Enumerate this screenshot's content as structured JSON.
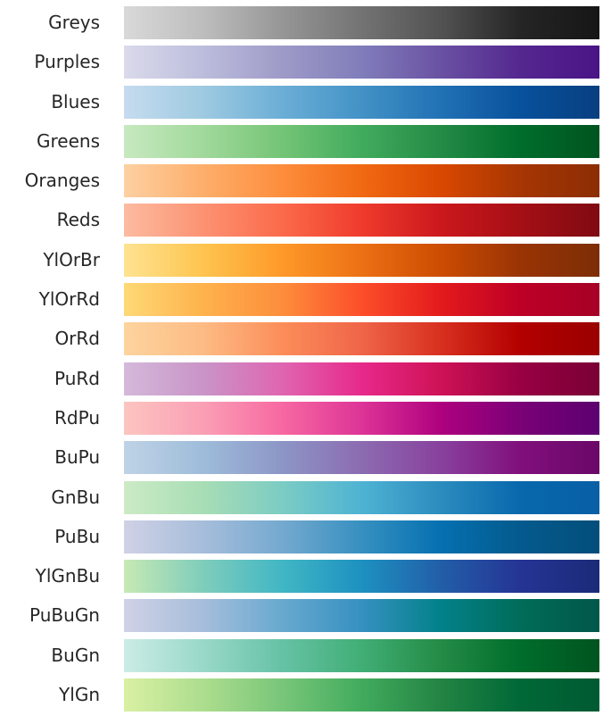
{
  "colormaps": [
    {
      "name": "Greys",
      "colors": [
        "#d9d9d9",
        "#bdbdbd",
        "#969696",
        "#737373",
        "#525252",
        "#252525",
        "#161616"
      ]
    },
    {
      "name": "Purples",
      "colors": [
        "#dadaeb",
        "#bcbddc",
        "#9e9ac8",
        "#807dba",
        "#6a51a3",
        "#54278f",
        "#4a1486"
      ]
    },
    {
      "name": "Blues",
      "colors": [
        "#c6dbef",
        "#9ecae1",
        "#6baed6",
        "#4292c6",
        "#2171b5",
        "#08519c",
        "#083f80"
      ]
    },
    {
      "name": "Greens",
      "colors": [
        "#c7e9c0",
        "#a1d99b",
        "#74c476",
        "#41ab5d",
        "#238b45",
        "#006d2c",
        "#00541f"
      ]
    },
    {
      "name": "Oranges",
      "colors": [
        "#fdd0a2",
        "#fdae6b",
        "#fd8d3c",
        "#f16913",
        "#d94801",
        "#a63603",
        "#8c2d04"
      ]
    },
    {
      "name": "Reds",
      "colors": [
        "#fcbba1",
        "#fc9272",
        "#fb6a4a",
        "#ef3b2c",
        "#cb181d",
        "#a50f15",
        "#800a12"
      ]
    },
    {
      "name": "YlOrBr",
      "colors": [
        "#fee391",
        "#fec44f",
        "#fe9929",
        "#ec7014",
        "#cc4c02",
        "#993404",
        "#7d2d07"
      ]
    },
    {
      "name": "YlOrRd",
      "colors": [
        "#fed976",
        "#feb24c",
        "#fd8d3c",
        "#fc4e2a",
        "#e31a1c",
        "#bd0026",
        "#a60026"
      ]
    },
    {
      "name": "OrRd",
      "colors": [
        "#fdd49e",
        "#fdbb84",
        "#fc8d59",
        "#ef6548",
        "#d7301f",
        "#b30000",
        "#9a0000"
      ]
    },
    {
      "name": "PuRd",
      "colors": [
        "#d4b9da",
        "#c994c7",
        "#df65b0",
        "#e7298a",
        "#ce1256",
        "#980043",
        "#7a0034"
      ]
    },
    {
      "name": "RdPu",
      "colors": [
        "#fcc5c0",
        "#fa9fb5",
        "#f768a1",
        "#dd3497",
        "#ae017e",
        "#7a0177",
        "#5c0070"
      ]
    },
    {
      "name": "BuPu",
      "colors": [
        "#bfd3e6",
        "#9ebcda",
        "#8c96c6",
        "#8c6bb1",
        "#88419d",
        "#810f7c",
        "#6a0868"
      ]
    },
    {
      "name": "GnBu",
      "colors": [
        "#ccebc5",
        "#a8ddb5",
        "#7bccc4",
        "#4eb3d3",
        "#2b8cbe",
        "#0868ac",
        "#085fa5"
      ]
    },
    {
      "name": "PuBu",
      "colors": [
        "#d0d1e6",
        "#a6bddb",
        "#74a9cf",
        "#3690c0",
        "#0570b0",
        "#045a8d",
        "#034e7b"
      ]
    },
    {
      "name": "YlGnBu",
      "colors": [
        "#c7e9b4",
        "#7fcdbb",
        "#41b6c4",
        "#1d91c0",
        "#225ea8",
        "#253494",
        "#1b2a78"
      ]
    },
    {
      "name": "PuBuGn",
      "colors": [
        "#d0d1e6",
        "#a6bddb",
        "#67a9cf",
        "#3690c0",
        "#02818a",
        "#016c59",
        "#01574a"
      ]
    },
    {
      "name": "BuGn",
      "colors": [
        "#ccece6",
        "#99d8c9",
        "#66c2a4",
        "#41ae76",
        "#238b45",
        "#006d2c",
        "#00541f"
      ]
    },
    {
      "name": "YlGn",
      "colors": [
        "#d9f0a3",
        "#addd8e",
        "#78c679",
        "#41ab5d",
        "#238443",
        "#006837",
        "#005a32"
      ]
    }
  ]
}
